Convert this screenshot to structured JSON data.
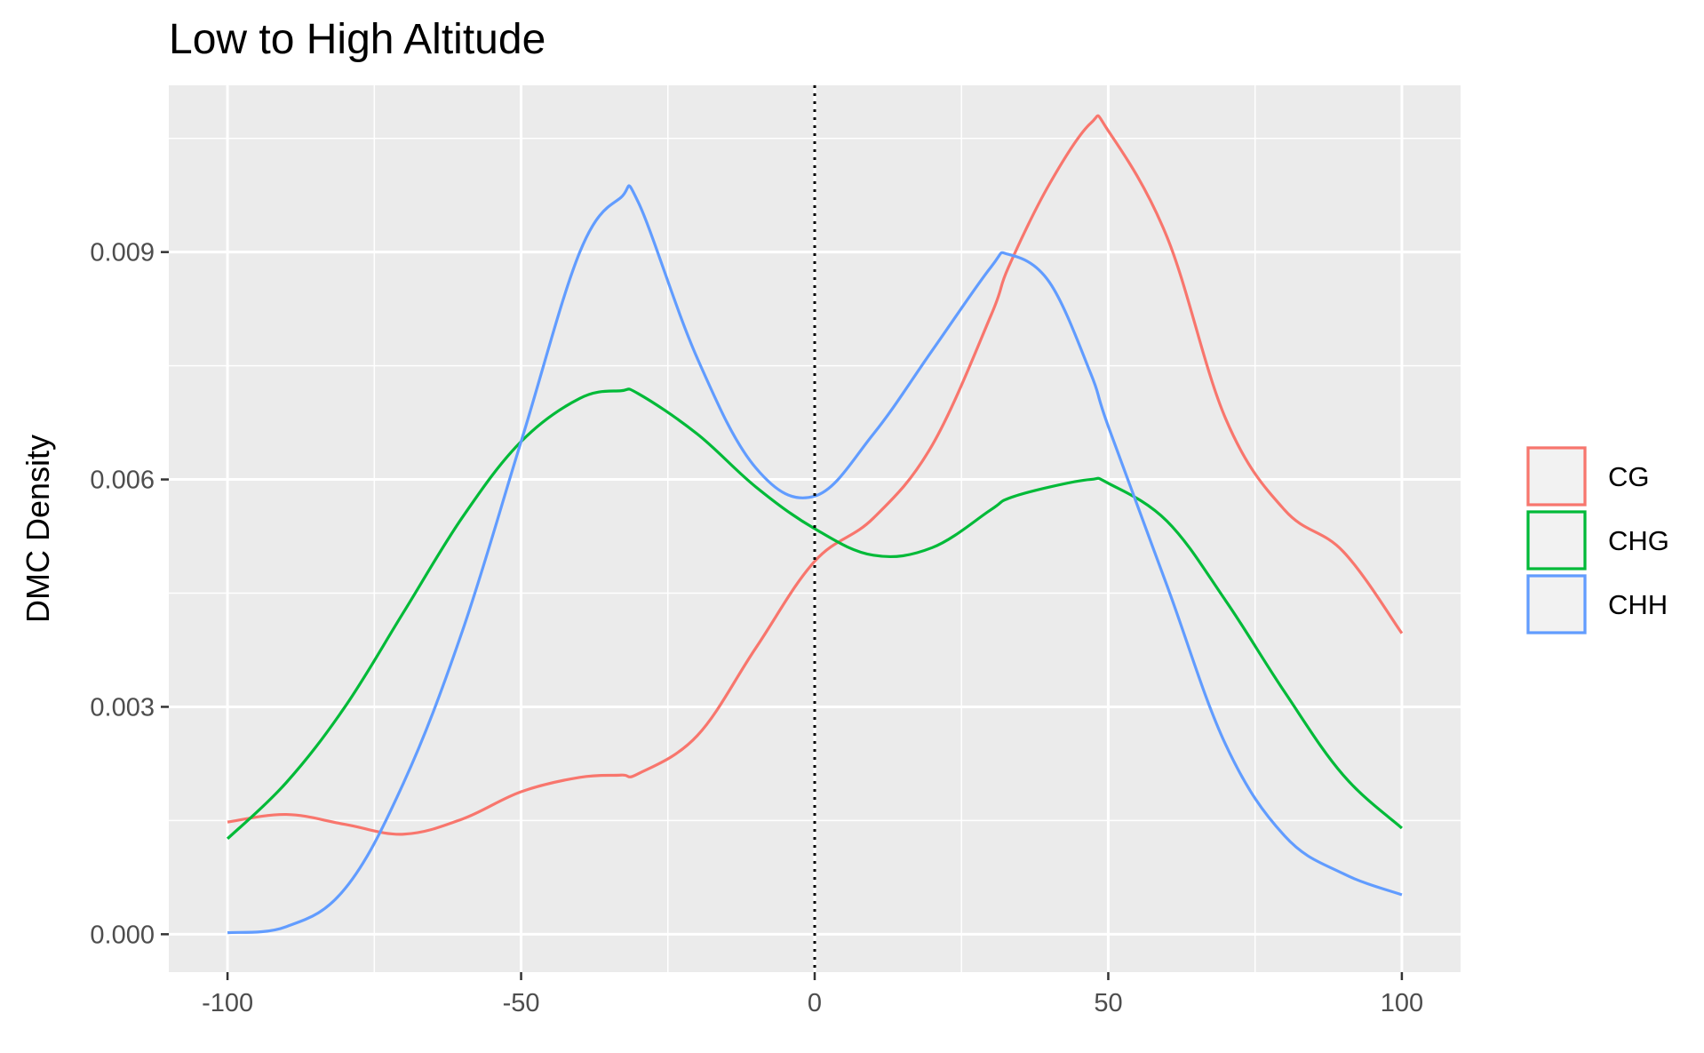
{
  "chart_data": {
    "type": "line",
    "title": "Low to High Altitude",
    "xlabel": "",
    "ylabel": "DMC Density",
    "xlim": [
      -110,
      110
    ],
    "ylim": [
      -0.0005,
      0.0112
    ],
    "x_ticks": [
      -100,
      -50,
      0,
      50,
      100
    ],
    "x_tick_labels": [
      "-100",
      "-50",
      "0",
      "50",
      "100"
    ],
    "y_ticks": [
      0.0,
      0.003,
      0.006,
      0.009
    ],
    "y_tick_labels": [
      "0.000",
      "0.003",
      "0.006",
      "0.009"
    ],
    "x_minor": [
      -75,
      -25,
      25,
      75
    ],
    "y_minor": [
      0.0015,
      0.0045,
      0.0075,
      0.0105
    ],
    "reference_line": {
      "x": 0,
      "style": "dotted",
      "color": "#000000"
    },
    "grid": true,
    "legend_position": "right",
    "x": [
      -100,
      -90,
      -80,
      -70,
      -60,
      -50,
      -40,
      -33,
      -30,
      -20,
      -10,
      0,
      10,
      20,
      30,
      33,
      40,
      47,
      50,
      60,
      70,
      80,
      90,
      100
    ],
    "series": [
      {
        "name": "CG",
        "color": "#F8766D",
        "values": [
          0.00148,
          0.00158,
          0.00145,
          0.00132,
          0.00152,
          0.00188,
          0.00207,
          0.0021,
          0.00212,
          0.00262,
          0.00378,
          0.00492,
          0.00549,
          0.00645,
          0.00816,
          0.0088,
          0.0099,
          0.0107,
          0.0106,
          0.0092,
          0.0068,
          0.0056,
          0.00505,
          0.00397
        ]
      },
      {
        "name": "CHG",
        "color": "#00BA38",
        "values": [
          0.00126,
          0.002,
          0.003,
          0.00425,
          0.0055,
          0.0065,
          0.00707,
          0.00717,
          0.00713,
          0.0066,
          0.0059,
          0.00535,
          0.005,
          0.0051,
          0.0056,
          0.00575,
          0.0059,
          0.006,
          0.00595,
          0.00545,
          0.0044,
          0.0032,
          0.0021,
          0.0014
        ]
      },
      {
        "name": "CHH",
        "color": "#619CFF",
        "values": [
          2e-05,
          0.0001,
          0.0006,
          0.002,
          0.004,
          0.0065,
          0.009,
          0.00972,
          0.00965,
          0.0076,
          0.00615,
          0.00578,
          0.0066,
          0.0077,
          0.0088,
          0.00897,
          0.0086,
          0.0074,
          0.0067,
          0.0046,
          0.0025,
          0.0013,
          0.0008,
          0.00052
        ]
      }
    ]
  }
}
